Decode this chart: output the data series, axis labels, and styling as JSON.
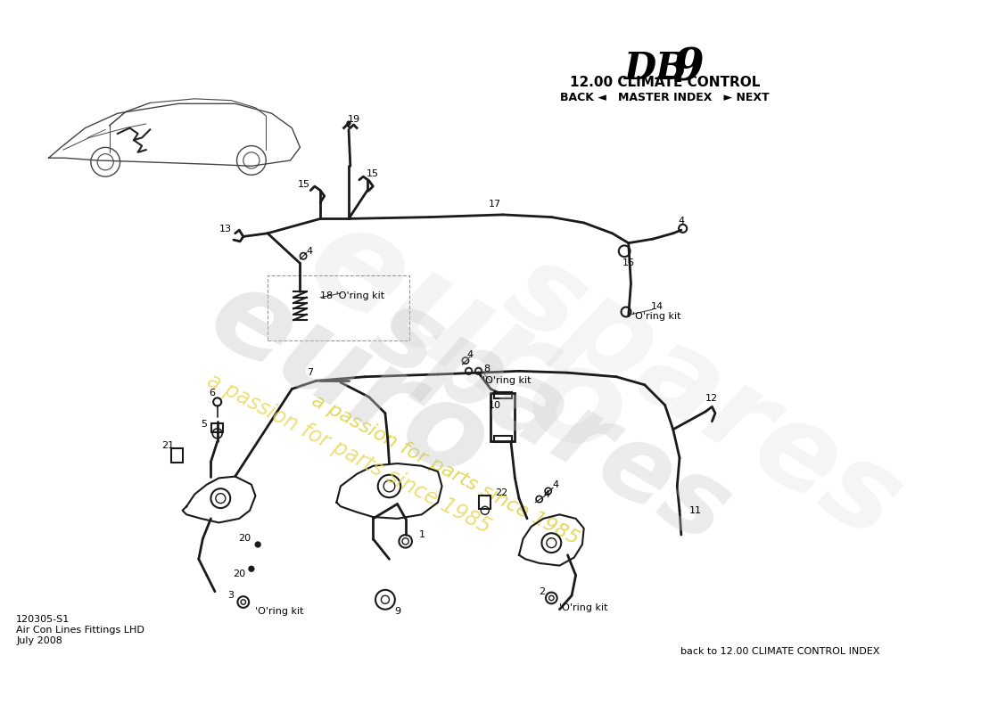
{
  "title_db9": "DB",
  "title_9": "9",
  "title_sub": "12.00 CLIMATE CONTROL",
  "title_nav": "BACK ◄   MASTER INDEX   ► NEXT",
  "bottom_left_line1": "120305-S1",
  "bottom_left_line2": "Air Con Lines Fittings LHD",
  "bottom_left_line3": "July 2008",
  "bottom_right": "back to 12.00 CLIMATE CONTROL INDEX",
  "bg_color": "#ffffff",
  "lc": "#1a1a1a",
  "pipe_lw": 2.0,
  "watermark_grey": "#c8c8c8",
  "watermark_yellow": "#e8d44d"
}
